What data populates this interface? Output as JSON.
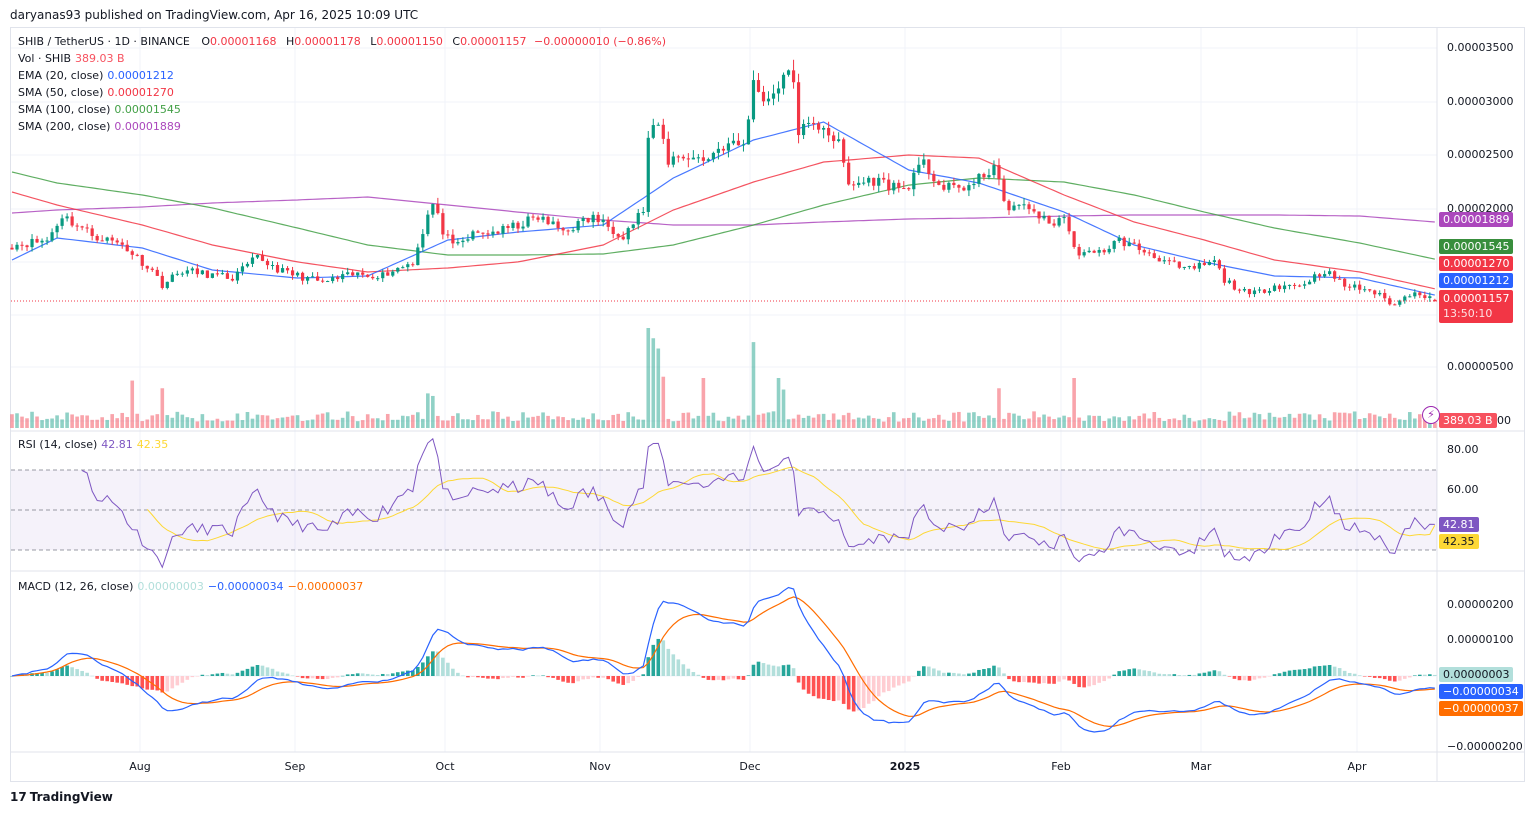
{
  "header": {
    "published": "daryanas93 published on TradingView.com, Apr 16, 2025 10:09 UTC"
  },
  "legend": {
    "symbol": "SHIB / TetherUS · 1D · BINANCE",
    "o_label": "O",
    "o": "0.00001168",
    "h_label": "H",
    "h": "0.00001178",
    "l_label": "L",
    "l": "0.00001150",
    "c_label": "C",
    "c": "0.00001157",
    "change": "−0.00000010 (−0.86%)",
    "vol_label": "Vol · SHIB",
    "vol": "389.03 B",
    "ema20_label": "EMA (20, close)",
    "ema20": "0.00001212",
    "sma50_label": "SMA (50, close)",
    "sma50": "0.00001270",
    "sma100_label": "SMA (100, close)",
    "sma100": "0.00001545",
    "sma200_label": "SMA (200, close)",
    "sma200": "0.00001889",
    "rsi_label": "RSI (14, close)",
    "rsi": "42.81",
    "rsi_ma": "42.35",
    "macd_label": "MACD (12, 26, close)",
    "macd_hist": "0.00000003",
    "macd": "−0.00000034",
    "macd_signal": "−0.00000037"
  },
  "axis": {
    "price_ticks": [
      "0.00003500",
      "0.00003000",
      "0.00002500",
      "0.00002000",
      "0.00000500",
      "00"
    ],
    "rsi_ticks": [
      "80.00",
      "60.00"
    ],
    "macd_ticks": [
      "0.00000200",
      "0.00000100",
      "−0.00000200"
    ],
    "time_labels": [
      "Aug",
      "Sep",
      "Oct",
      "Nov",
      "Dec",
      "2025",
      "Feb",
      "Mar",
      "Apr"
    ],
    "countdown": "13:50:10"
  },
  "colors": {
    "up": "#089981",
    "down": "#f23645",
    "ema20": "#2962ff",
    "sma50": "#f23645",
    "sma100": "#43a047",
    "sma200": "#ab47bc",
    "rsi": "#7e57c2",
    "rsi_ma": "#fdd835",
    "macd": "#2962ff",
    "signal": "#ff6d00"
  },
  "footer": {
    "brand": "TradingView"
  },
  "chart_data": {
    "type": "candlestick",
    "symbol": "SHIBUSDT",
    "interval": "1D",
    "x_range": [
      "2024-07-06",
      "2025-04-16"
    ],
    "y_range": [
      0,
      3.6e-05
    ],
    "close_keypoints": [
      [
        "2024-07-06",
        1.676e-05
      ],
      [
        "2024-07-13",
        1.72e-05
      ],
      [
        "2024-07-16",
        1.95e-05
      ],
      [
        "2024-07-22",
        1.77e-05
      ],
      [
        "2024-07-28",
        1.68e-05
      ],
      [
        "2024-08-03",
        1.44e-05
      ],
      [
        "2024-08-05",
        1.31e-05
      ],
      [
        "2024-08-09",
        1.44e-05
      ],
      [
        "2024-08-19",
        1.37e-05
      ],
      [
        "2024-08-24",
        1.56e-05
      ],
      [
        "2024-08-29",
        1.43e-05
      ],
      [
        "2024-09-06",
        1.33e-05
      ],
      [
        "2024-09-12",
        1.4e-05
      ],
      [
        "2024-09-18",
        1.4e-05
      ],
      [
        "2024-09-24",
        1.52e-05
      ],
      [
        "2024-09-27",
        1.95e-05
      ],
      [
        "2024-09-28",
        2.05e-05
      ],
      [
        "2024-09-30",
        1.81e-05
      ],
      [
        "2024-10-02",
        1.65e-05
      ],
      [
        "2024-10-06",
        1.77e-05
      ],
      [
        "2024-10-12",
        1.81e-05
      ],
      [
        "2024-10-19",
        1.93e-05
      ],
      [
        "2024-10-24",
        1.81e-05
      ],
      [
        "2024-10-30",
        1.93e-05
      ],
      [
        "2024-11-05",
        1.77e-05
      ],
      [
        "2024-11-09",
        2e-05
      ],
      [
        "2024-11-10",
        2.65e-05
      ],
      [
        "2024-11-12",
        2.79e-05
      ],
      [
        "2024-11-14",
        2.46e-05
      ],
      [
        "2024-11-17",
        2.51e-05
      ],
      [
        "2024-11-21",
        2.46e-05
      ],
      [
        "2024-11-25",
        2.6e-05
      ],
      [
        "2024-11-29",
        2.6e-05
      ],
      [
        "2024-12-01",
        3.16e-05
      ],
      [
        "2024-12-04",
        3.02e-05
      ],
      [
        "2024-12-07",
        3.25e-05
      ],
      [
        "2024-12-09",
        3.2e-05
      ],
      [
        "2024-12-10",
        2.74e-05
      ],
      [
        "2024-12-15",
        2.79e-05
      ],
      [
        "2024-12-18",
        2.6e-05
      ],
      [
        "2024-12-20",
        2.23e-05
      ],
      [
        "2024-12-25",
        2.28e-05
      ],
      [
        "2024-12-31",
        2.19e-05
      ],
      [
        "2025-01-04",
        2.42e-05
      ],
      [
        "2025-01-08",
        2.19e-05
      ],
      [
        "2025-01-14",
        2.23e-05
      ],
      [
        "2025-01-18",
        2.42e-05
      ],
      [
        "2025-01-20",
        2.05e-05
      ],
      [
        "2025-01-26",
        2e-05
      ],
      [
        "2025-01-29",
        1.86e-05
      ],
      [
        "2025-02-01",
        1.95e-05
      ],
      [
        "2025-02-03",
        1.63e-05
      ],
      [
        "2025-02-07",
        1.58e-05
      ],
      [
        "2025-02-12",
        1.72e-05
      ],
      [
        "2025-02-19",
        1.58e-05
      ],
      [
        "2025-02-25",
        1.44e-05
      ],
      [
        "2025-03-03",
        1.52e-05
      ],
      [
        "2025-03-05",
        1.35e-05
      ],
      [
        "2025-03-10",
        1.21e-05
      ],
      [
        "2025-03-15",
        1.3e-05
      ],
      [
        "2025-03-20",
        1.3e-05
      ],
      [
        "2025-03-25",
        1.44e-05
      ],
      [
        "2025-03-29",
        1.3e-05
      ],
      [
        "2025-04-03",
        1.26e-05
      ],
      [
        "2025-04-08",
        1.12e-05
      ],
      [
        "2025-04-12",
        1.26e-05
      ],
      [
        "2025-04-16",
        1.157e-05
      ]
    ],
    "ma_dates": [
      "2024-07-06",
      "2024-07-15",
      "2024-08-01",
      "2024-08-15",
      "2024-09-01",
      "2024-09-15",
      "2024-10-01",
      "2024-10-15",
      "2024-11-01",
      "2024-11-15",
      "2024-12-01",
      "2024-12-15",
      "2025-01-01",
      "2025-01-15",
      "2025-02-01",
      "2025-02-15",
      "2025-03-01",
      "2025-03-15",
      "2025-04-01",
      "2025-04-16"
    ],
    "ema20": [
      1.537e-05,
      1.741e-05,
      1.648e-05,
      1.444e-05,
      1.37e-05,
      1.389e-05,
      1.722e-05,
      1.796e-05,
      1.861e-05,
      2.296e-05,
      2.648e-05,
      2.815e-05,
      2.37e-05,
      2.25e-05,
      1.981e-05,
      1.676e-05,
      1.519e-05,
      1.389e-05,
      1.37e-05,
      1.212e-05
    ],
    "sma50": [
      2.167e-05,
      2.046e-05,
      1.861e-05,
      1.676e-05,
      1.519e-05,
      1.426e-05,
      1.463e-05,
      1.519e-05,
      1.676e-05,
      2e-05,
      2.259e-05,
      2.444e-05,
      2.509e-05,
      2.481e-05,
      2.139e-05,
      1.889e-05,
      1.722e-05,
      1.537e-05,
      1.426e-05,
      1.27e-05
    ],
    "sma100": [
      2.352e-05,
      2.25e-05,
      2.139e-05,
      2.019e-05,
      1.833e-05,
      1.676e-05,
      1.583e-05,
      1.583e-05,
      1.593e-05,
      1.676e-05,
      1.861e-05,
      2.046e-05,
      2.231e-05,
      2.296e-05,
      2.259e-05,
      2.139e-05,
      1.981e-05,
      1.833e-05,
      1.694e-05,
      1.545e-05
    ],
    "sma200": [
      1.972e-05,
      2e-05,
      2.028e-05,
      2.065e-05,
      2.093e-05,
      2.12e-05,
      2.046e-05,
      1.981e-05,
      1.907e-05,
      1.861e-05,
      1.861e-05,
      1.889e-05,
      1.917e-05,
      1.926e-05,
      1.944e-05,
      1.954e-05,
      1.954e-05,
      1.954e-05,
      1.944e-05,
      1.889e-05
    ],
    "volume_unit": "B",
    "volume_spikes": [
      [
        "2024-07-30",
        3700
      ],
      [
        "2024-08-05",
        3100
      ],
      [
        "2024-09-27",
        2700
      ],
      [
        "2024-09-28",
        2500
      ],
      [
        "2024-11-10",
        7800
      ],
      [
        "2024-11-11",
        7000
      ],
      [
        "2024-11-12",
        6200
      ],
      [
        "2024-11-13",
        4000
      ],
      [
        "2024-11-21",
        3900
      ],
      [
        "2024-12-01",
        6700
      ],
      [
        "2024-12-06",
        3900
      ],
      [
        "2024-12-07",
        3000
      ],
      [
        "2025-01-19",
        3100
      ],
      [
        "2025-02-03",
        3900
      ],
      [
        "2025-04-16",
        389.03
      ]
    ],
    "rsi_levels": [
      70,
      50,
      30
    ],
    "last": {
      "close": 1.157e-05,
      "rsi": 42.81,
      "rsi_ma": 42.35,
      "macd": -3.4e-07,
      "signal": -3.7e-07,
      "hist": 3e-08
    }
  }
}
